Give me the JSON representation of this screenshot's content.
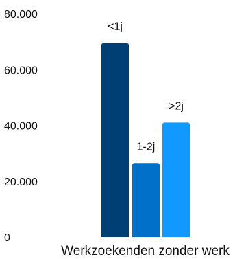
{
  "chart_data": {
    "type": "bar",
    "title": "",
    "xlabel": "",
    "ylabel": "",
    "categories": [
      "Werkzoekenden zonder werk"
    ],
    "series": [
      {
        "name": "<1j",
        "values": [
          69500
        ],
        "color": "#003f73"
      },
      {
        "name": "1-2j",
        "values": [
          26500
        ],
        "color": "#0070c8"
      },
      {
        "name": ">2j",
        "values": [
          41000
        ],
        "color": "#1199ff"
      }
    ],
    "data_labels": [
      "<1j",
      "1-2j",
      ">2j"
    ],
    "ylim": [
      0,
      80000
    ],
    "yticks": [
      0,
      20000,
      40000,
      60000,
      80000
    ],
    "ytick_labels": [
      "0",
      "20.000",
      "40.000",
      "60.000",
      "80.000"
    ],
    "grid": false,
    "legend": "none"
  }
}
